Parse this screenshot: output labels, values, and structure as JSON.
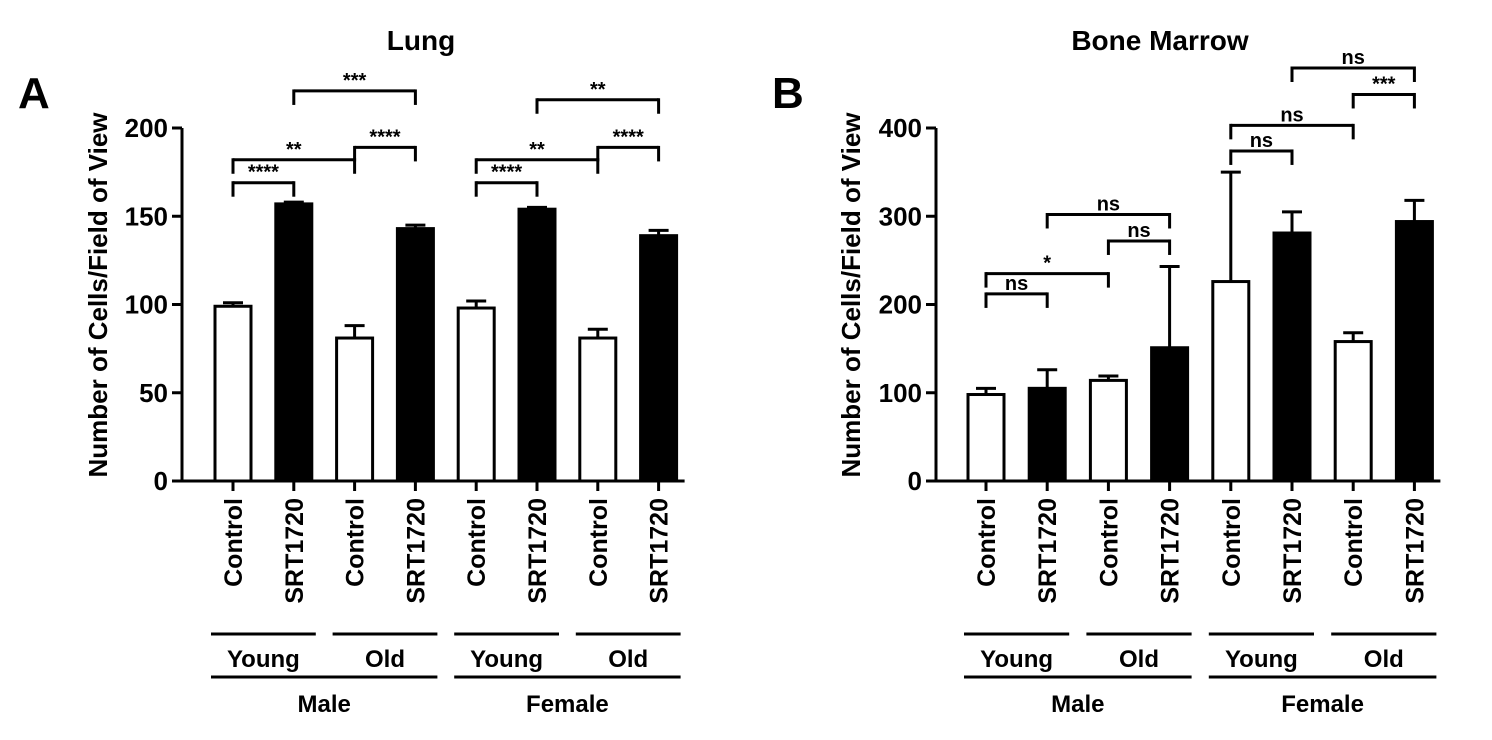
{
  "chart_data": [
    {
      "type": "bar",
      "panel": "A",
      "title": "Lung",
      "ylabel": "Number of Cells/Field of View",
      "ylim": [
        0,
        200
      ],
      "yticks": [
        0,
        50,
        100,
        150,
        200
      ],
      "categories": [
        "Control",
        "SRT1720",
        "Control",
        "SRT1720",
        "Control",
        "SRT1720",
        "Control",
        "SRT1720"
      ],
      "fills": [
        "white",
        "black",
        "white",
        "black",
        "white",
        "black",
        "white",
        "black"
      ],
      "values": [
        99,
        157,
        81,
        143,
        98,
        154,
        81,
        139
      ],
      "errors": [
        2,
        1,
        7,
        2,
        4,
        1,
        5,
        3
      ],
      "age_groups": [
        {
          "label": "Young",
          "from": 0,
          "to": 1
        },
        {
          "label": "Old",
          "from": 2,
          "to": 3
        },
        {
          "label": "Young",
          "from": 4,
          "to": 5
        },
        {
          "label": "Old",
          "from": 6,
          "to": 7
        }
      ],
      "sex_groups": [
        {
          "label": "Male",
          "from": 0,
          "to": 3
        },
        {
          "label": "Female",
          "from": 4,
          "to": 7
        }
      ],
      "comparisons": [
        {
          "from": 0,
          "to": 1,
          "level": 169,
          "label": "****"
        },
        {
          "from": 0,
          "to": 2,
          "level": 182,
          "label": "**"
        },
        {
          "from": 2,
          "to": 3,
          "level": 189,
          "label": "****"
        },
        {
          "from": 1,
          "to": 3,
          "level": 221,
          "label": "***"
        },
        {
          "from": 4,
          "to": 5,
          "level": 169,
          "label": "****"
        },
        {
          "from": 4,
          "to": 6,
          "level": 182,
          "label": "**"
        },
        {
          "from": 6,
          "to": 7,
          "level": 189,
          "label": "****"
        },
        {
          "from": 5,
          "to": 7,
          "level": 216,
          "label": "**"
        }
      ]
    },
    {
      "type": "bar",
      "panel": "B",
      "title": "Bone Marrow",
      "ylabel": "Number of Cells/Field of View",
      "ylim": [
        0,
        400
      ],
      "yticks": [
        0,
        100,
        200,
        300,
        400
      ],
      "categories": [
        "Control",
        "SRT1720",
        "Control",
        "SRT1720",
        "Control",
        "SRT1720",
        "Control",
        "SRT1720"
      ],
      "fills": [
        "white",
        "black",
        "white",
        "black",
        "white",
        "black",
        "white",
        "black"
      ],
      "values": [
        98,
        105,
        114,
        151,
        226,
        281,
        158,
        294
      ],
      "errors": [
        7,
        21,
        5,
        92,
        124,
        24,
        10,
        24
      ],
      "age_groups": [
        {
          "label": "Young",
          "from": 0,
          "to": 1
        },
        {
          "label": "Old",
          "from": 2,
          "to": 3
        },
        {
          "label": "Young",
          "from": 4,
          "to": 5
        },
        {
          "label": "Old",
          "from": 6,
          "to": 7
        }
      ],
      "sex_groups": [
        {
          "label": "Male",
          "from": 0,
          "to": 3
        },
        {
          "label": "Female",
          "from": 4,
          "to": 7
        }
      ],
      "comparisons": [
        {
          "from": 0,
          "to": 1,
          "level": 212,
          "label": "ns"
        },
        {
          "from": 0,
          "to": 2,
          "level": 235,
          "label": "*"
        },
        {
          "from": 2,
          "to": 3,
          "level": 272,
          "label": "ns"
        },
        {
          "from": 1,
          "to": 3,
          "level": 302,
          "label": "ns"
        },
        {
          "from": 4,
          "to": 5,
          "level": 374,
          "label": "ns"
        },
        {
          "from": 4,
          "to": 6,
          "level": 403,
          "label": "ns"
        },
        {
          "from": 6,
          "to": 7,
          "level": 438,
          "label": "***"
        },
        {
          "from": 5,
          "to": 7,
          "level": 468,
          "label": "ns"
        }
      ]
    }
  ]
}
